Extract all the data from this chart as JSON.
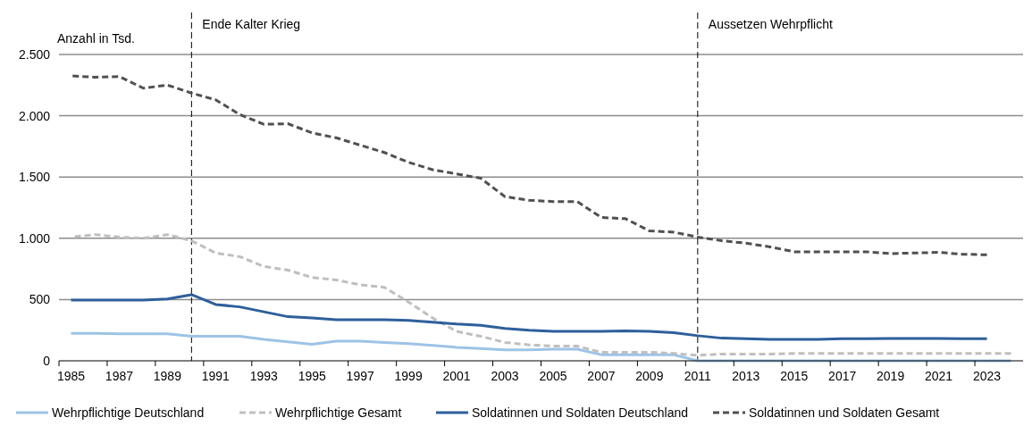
{
  "chart_data": {
    "type": "line",
    "ylabel": "Anzahl in Tsd.",
    "x": [
      1985,
      1986,
      1987,
      1988,
      1989,
      1990,
      1991,
      1992,
      1993,
      1994,
      1995,
      1996,
      1997,
      1998,
      1999,
      2000,
      2001,
      2002,
      2003,
      2004,
      2005,
      2006,
      2007,
      2008,
      2009,
      2010,
      2011,
      2012,
      2013,
      2014,
      2015,
      2016,
      2017,
      2018,
      2019,
      2020,
      2021,
      2022,
      2023,
      2024
    ],
    "xlim": [
      1984.5,
      2024.5
    ],
    "xticks": [
      1985,
      1987,
      1989,
      1991,
      1993,
      1995,
      1997,
      1999,
      2001,
      2003,
      2005,
      2007,
      2009,
      2011,
      2013,
      2015,
      2017,
      2019,
      2021,
      2023
    ],
    "ylim": [
      0,
      2500
    ],
    "yticks": [
      0,
      {
        "value": 500,
        "label": "500"
      },
      {
        "value": 1000,
        "label": "1.000"
      },
      {
        "value": 1500,
        "label": "1.500"
      },
      {
        "value": 2000,
        "label": "2.000"
      },
      {
        "value": 2500,
        "label": "2.500"
      }
    ],
    "grid": "y",
    "legend": "bottom",
    "series": [
      {
        "name": "Wehrpflichtige Deutschland",
        "color": "#9dc3e6",
        "line_style": "solid",
        "values": [
          225,
          225,
          220,
          220,
          220,
          200,
          200,
          200,
          175,
          155,
          135,
          160,
          160,
          150,
          140,
          125,
          110,
          100,
          90,
          90,
          95,
          95,
          50,
          50,
          50,
          50,
          0,
          0,
          0,
          0,
          0,
          0,
          0,
          0,
          0,
          0,
          0,
          0,
          0,
          0
        ]
      },
      {
        "name": "Wehrpflichtige Gesamt",
        "color": "#bfbfbf",
        "line_style": "dashed",
        "values": [
          1010,
          1030,
          1010,
          1000,
          1030,
          980,
          880,
          850,
          770,
          740,
          680,
          660,
          620,
          600,
          480,
          350,
          240,
          200,
          150,
          130,
          120,
          120,
          70,
          70,
          70,
          60,
          45,
          55,
          55,
          55,
          60,
          60,
          60,
          60,
          60,
          60,
          60,
          60,
          60,
          60
        ]
      },
      {
        "name": "Soldatinnen und Soldaten Deutschland",
        "color": "#2e5f9b",
        "line_style": "solid",
        "values": [
          495,
          495,
          495,
          495,
          505,
          540,
          460,
          440,
          400,
          360,
          350,
          335,
          335,
          335,
          330,
          315,
          300,
          290,
          265,
          250,
          240,
          240,
          240,
          245,
          240,
          230,
          205,
          185,
          180,
          175,
          175,
          175,
          180,
          180,
          183,
          183,
          183,
          180,
          180,
          null
        ]
      },
      {
        "name": "Soldatinnen und Soldaten Gesamt",
        "color": "#505050",
        "line_style": "dashed",
        "values": [
          2325,
          2315,
          2320,
          2225,
          2250,
          2185,
          2130,
          2010,
          1930,
          1935,
          1860,
          1820,
          1760,
          1700,
          1620,
          1560,
          1525,
          1490,
          1340,
          1310,
          1300,
          1300,
          1170,
          1160,
          1060,
          1050,
          1010,
          980,
          960,
          930,
          890,
          890,
          890,
          890,
          875,
          880,
          885,
          870,
          865,
          null
        ]
      }
    ],
    "ref_lines": [
      {
        "axis": "x",
        "value": 1990,
        "label": "Ende Kalter Krieg",
        "color": "#000000",
        "line_style": "dashed"
      },
      {
        "axis": "x",
        "value": 2011,
        "label": "Aussetzen Wehrpflicht",
        "color": "#000000",
        "line_style": "dashed"
      }
    ]
  }
}
